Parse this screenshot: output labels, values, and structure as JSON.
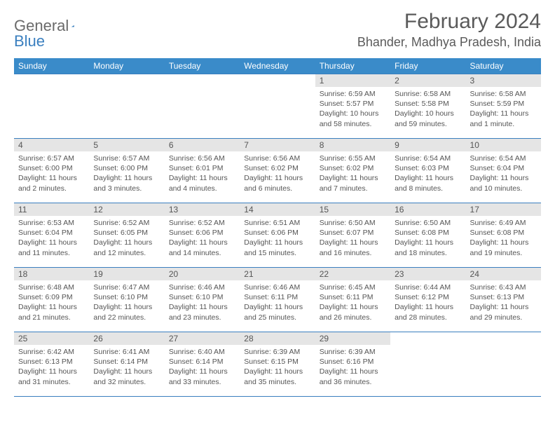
{
  "logo": {
    "word1": "General",
    "word2": "Blue"
  },
  "title": "February 2024",
  "location": "Bhander, Madhya Pradesh, India",
  "colors": {
    "header_bg": "#3a8bc9",
    "header_text": "#ffffff",
    "rule": "#3a7fbf",
    "daynum_bg": "#e5e5e5",
    "text": "#555555",
    "logo_gray": "#6a6a6a",
    "logo_blue": "#3a7fbf"
  },
  "day_headers": [
    "Sunday",
    "Monday",
    "Tuesday",
    "Wednesday",
    "Thursday",
    "Friday",
    "Saturday"
  ],
  "weeks": [
    [
      null,
      null,
      null,
      null,
      {
        "n": "1",
        "sunrise": "Sunrise: 6:59 AM",
        "sunset": "Sunset: 5:57 PM",
        "daylight": "Daylight: 10 hours and 58 minutes."
      },
      {
        "n": "2",
        "sunrise": "Sunrise: 6:58 AM",
        "sunset": "Sunset: 5:58 PM",
        "daylight": "Daylight: 10 hours and 59 minutes."
      },
      {
        "n": "3",
        "sunrise": "Sunrise: 6:58 AM",
        "sunset": "Sunset: 5:59 PM",
        "daylight": "Daylight: 11 hours and 1 minute."
      }
    ],
    [
      {
        "n": "4",
        "sunrise": "Sunrise: 6:57 AM",
        "sunset": "Sunset: 6:00 PM",
        "daylight": "Daylight: 11 hours and 2 minutes."
      },
      {
        "n": "5",
        "sunrise": "Sunrise: 6:57 AM",
        "sunset": "Sunset: 6:00 PM",
        "daylight": "Daylight: 11 hours and 3 minutes."
      },
      {
        "n": "6",
        "sunrise": "Sunrise: 6:56 AM",
        "sunset": "Sunset: 6:01 PM",
        "daylight": "Daylight: 11 hours and 4 minutes."
      },
      {
        "n": "7",
        "sunrise": "Sunrise: 6:56 AM",
        "sunset": "Sunset: 6:02 PM",
        "daylight": "Daylight: 11 hours and 6 minutes."
      },
      {
        "n": "8",
        "sunrise": "Sunrise: 6:55 AM",
        "sunset": "Sunset: 6:02 PM",
        "daylight": "Daylight: 11 hours and 7 minutes."
      },
      {
        "n": "9",
        "sunrise": "Sunrise: 6:54 AM",
        "sunset": "Sunset: 6:03 PM",
        "daylight": "Daylight: 11 hours and 8 minutes."
      },
      {
        "n": "10",
        "sunrise": "Sunrise: 6:54 AM",
        "sunset": "Sunset: 6:04 PM",
        "daylight": "Daylight: 11 hours and 10 minutes."
      }
    ],
    [
      {
        "n": "11",
        "sunrise": "Sunrise: 6:53 AM",
        "sunset": "Sunset: 6:04 PM",
        "daylight": "Daylight: 11 hours and 11 minutes."
      },
      {
        "n": "12",
        "sunrise": "Sunrise: 6:52 AM",
        "sunset": "Sunset: 6:05 PM",
        "daylight": "Daylight: 11 hours and 12 minutes."
      },
      {
        "n": "13",
        "sunrise": "Sunrise: 6:52 AM",
        "sunset": "Sunset: 6:06 PM",
        "daylight": "Daylight: 11 hours and 14 minutes."
      },
      {
        "n": "14",
        "sunrise": "Sunrise: 6:51 AM",
        "sunset": "Sunset: 6:06 PM",
        "daylight": "Daylight: 11 hours and 15 minutes."
      },
      {
        "n": "15",
        "sunrise": "Sunrise: 6:50 AM",
        "sunset": "Sunset: 6:07 PM",
        "daylight": "Daylight: 11 hours and 16 minutes."
      },
      {
        "n": "16",
        "sunrise": "Sunrise: 6:50 AM",
        "sunset": "Sunset: 6:08 PM",
        "daylight": "Daylight: 11 hours and 18 minutes."
      },
      {
        "n": "17",
        "sunrise": "Sunrise: 6:49 AM",
        "sunset": "Sunset: 6:08 PM",
        "daylight": "Daylight: 11 hours and 19 minutes."
      }
    ],
    [
      {
        "n": "18",
        "sunrise": "Sunrise: 6:48 AM",
        "sunset": "Sunset: 6:09 PM",
        "daylight": "Daylight: 11 hours and 21 minutes."
      },
      {
        "n": "19",
        "sunrise": "Sunrise: 6:47 AM",
        "sunset": "Sunset: 6:10 PM",
        "daylight": "Daylight: 11 hours and 22 minutes."
      },
      {
        "n": "20",
        "sunrise": "Sunrise: 6:46 AM",
        "sunset": "Sunset: 6:10 PM",
        "daylight": "Daylight: 11 hours and 23 minutes."
      },
      {
        "n": "21",
        "sunrise": "Sunrise: 6:46 AM",
        "sunset": "Sunset: 6:11 PM",
        "daylight": "Daylight: 11 hours and 25 minutes."
      },
      {
        "n": "22",
        "sunrise": "Sunrise: 6:45 AM",
        "sunset": "Sunset: 6:11 PM",
        "daylight": "Daylight: 11 hours and 26 minutes."
      },
      {
        "n": "23",
        "sunrise": "Sunrise: 6:44 AM",
        "sunset": "Sunset: 6:12 PM",
        "daylight": "Daylight: 11 hours and 28 minutes."
      },
      {
        "n": "24",
        "sunrise": "Sunrise: 6:43 AM",
        "sunset": "Sunset: 6:13 PM",
        "daylight": "Daylight: 11 hours and 29 minutes."
      }
    ],
    [
      {
        "n": "25",
        "sunrise": "Sunrise: 6:42 AM",
        "sunset": "Sunset: 6:13 PM",
        "daylight": "Daylight: 11 hours and 31 minutes."
      },
      {
        "n": "26",
        "sunrise": "Sunrise: 6:41 AM",
        "sunset": "Sunset: 6:14 PM",
        "daylight": "Daylight: 11 hours and 32 minutes."
      },
      {
        "n": "27",
        "sunrise": "Sunrise: 6:40 AM",
        "sunset": "Sunset: 6:14 PM",
        "daylight": "Daylight: 11 hours and 33 minutes."
      },
      {
        "n": "28",
        "sunrise": "Sunrise: 6:39 AM",
        "sunset": "Sunset: 6:15 PM",
        "daylight": "Daylight: 11 hours and 35 minutes."
      },
      {
        "n": "29",
        "sunrise": "Sunrise: 6:39 AM",
        "sunset": "Sunset: 6:16 PM",
        "daylight": "Daylight: 11 hours and 36 minutes."
      },
      null,
      null
    ]
  ]
}
